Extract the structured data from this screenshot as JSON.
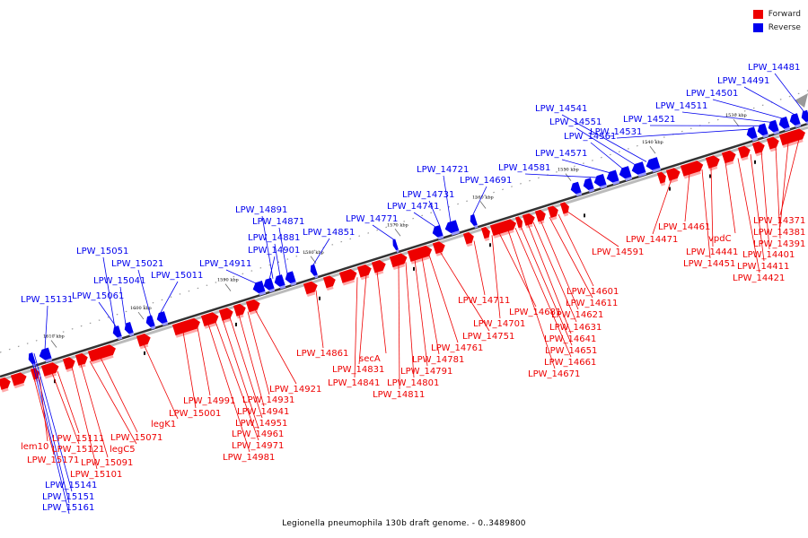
{
  "caption": "Legionella pneumophila 130b draft genome. - 0..3489800",
  "colors": {
    "forward": "#ee0000",
    "reverse": "#0000ee",
    "axis": "#333333"
  },
  "legend": [
    {
      "label": "Forward",
      "color": "#ee0000"
    },
    {
      "label": "Reverse",
      "color": "#0000ee"
    }
  ],
  "kbp_ticks": [
    "1530 kbp",
    "1540 kbp",
    "1550 kbp",
    "1560 kbp",
    "1570 kbp",
    "1580 kbp",
    "1590 kbp",
    "1600 kbp",
    "1610 kbp"
  ],
  "reverse_genes": [
    "LPW_14481",
    "LPW_14491",
    "LPW_14501",
    "LPW_14511",
    "LPW_14521",
    "LPW_14531",
    "LPW_14541",
    "LPW_14551",
    "LPW_14561",
    "LPW_14571",
    "LPW_14581",
    "LPW_14691",
    "LPW_14721",
    "LPW_14731",
    "LPW_14741",
    "LPW_14771",
    "LPW_14851",
    "LPW_14871",
    "LPW_14881",
    "LPW_14891",
    "LPW_14901",
    "LPW_14911",
    "LPW_15011",
    "LPW_15021",
    "LPW_15041",
    "LPW_15051",
    "LPW_15061",
    "LPW_15131",
    "LPW_15141",
    "LPW_15151",
    "LPW_15161"
  ],
  "forward_genes": [
    "LPW_14371",
    "LPW_14381",
    "LPW_14391",
    "LPW_14401",
    "LPW_14411",
    "LPW_14421",
    "vpdC",
    "LPW_14441",
    "LPW_14451",
    "LPW_14461",
    "LPW_14471",
    "LPW_14591",
    "LPW_14601",
    "LPW_14611",
    "LPW_14621",
    "LPW_14631",
    "LPW_14641",
    "LPW_14651",
    "LPW_14661",
    "LPW_14671",
    "LPW_14681",
    "LPW_14701",
    "LPW_14711",
    "LPW_14751",
    "LPW_14761",
    "LPW_14781",
    "LPW_14791",
    "LPW_14801",
    "LPW_14811",
    "secA",
    "LPW_14831",
    "LPW_14841",
    "LPW_14861",
    "LPW_14921",
    "LPW_14931",
    "LPW_14941",
    "LPW_14951",
    "LPW_14961",
    "LPW_14971",
    "LPW_14981",
    "LPW_14991",
    "LPW_15001",
    "legK1",
    "LPW_15071",
    "legC5",
    "LPW_15091",
    "LPW_15101",
    "LPW_15111",
    "LPW_15121",
    "lem10",
    "LPW_15171"
  ]
}
